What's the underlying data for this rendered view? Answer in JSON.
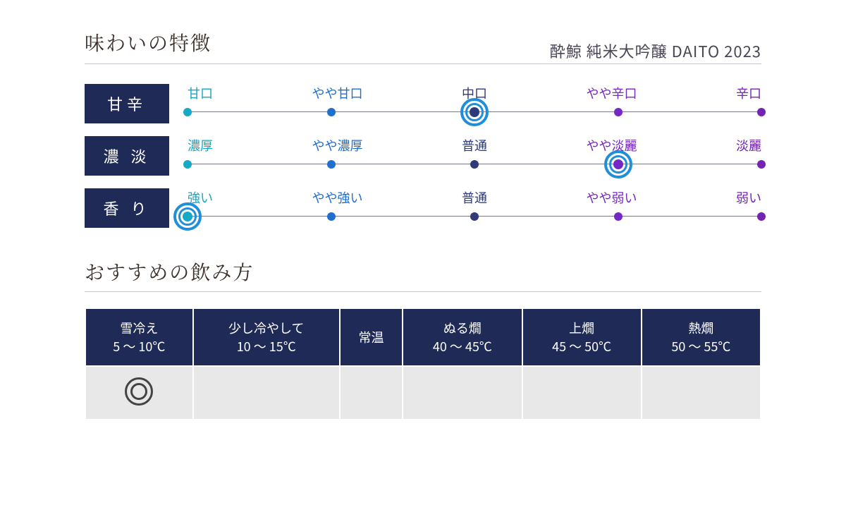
{
  "section1_title": "味わいの特徴",
  "product_name": "酔鯨 純米大吟醸 DAITO 2023",
  "section2_title": "おすすめの飲み方",
  "scale_colors": {
    "stop1": "#16a8c4",
    "stop2": "#1f6fcf",
    "stop3": "#2f3a7a",
    "stop4": "#7628c4",
    "stop5": "#7324b0",
    "target_ring": "#1f8fd9",
    "line": "#7a7a8a",
    "label_bg": "#202a57"
  },
  "scales": [
    {
      "label": "甘辛",
      "stops": [
        "甘口",
        "やや甘口",
        "中口",
        "やや辛口",
        "辛口"
      ],
      "selected_index": 2
    },
    {
      "label": "濃 淡",
      "stops": [
        "濃厚",
        "やや濃厚",
        "普通",
        "やや淡麗",
        "淡麗"
      ],
      "selected_index": 3
    },
    {
      "label": "香 り",
      "stops": [
        "強い",
        "やや強い",
        "普通",
        "やや弱い",
        "弱い"
      ],
      "selected_index": 0
    }
  ],
  "serving_table": {
    "columns": [
      {
        "name": "雪冷え",
        "temp": "5 〜 10℃"
      },
      {
        "name": "少し冷やして",
        "temp": "10 〜 15℃"
      },
      {
        "name": "常温",
        "temp": ""
      },
      {
        "name": "ぬる燗",
        "temp": "40 〜 45℃"
      },
      {
        "name": "上燗",
        "temp": "45 〜 50℃"
      },
      {
        "name": "熱燗",
        "temp": "50 〜 55℃"
      }
    ],
    "recommended_index": 0,
    "header_bg": "#202a57",
    "cell_bg": "#e8e8e8",
    "mark_color": "#444444"
  }
}
